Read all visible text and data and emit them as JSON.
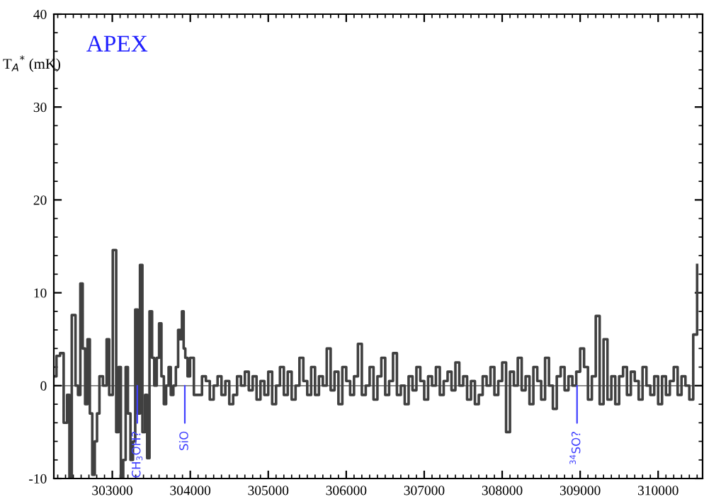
{
  "chart_data": {
    "type": "step",
    "ylabel": "T$_{A}$$^{*}$ (mK)",
    "annotations": [
      "APEX",
      {
        "text": "CH$_{3}$OH?",
        "x": 303320,
        "y": 0
      },
      {
        "text": "SiO",
        "x": 303930,
        "y": 0
      },
      {
        "text": "$^{34}$SO?",
        "x": 308960,
        "y": 0
      }
    ],
    "series": [
      {
        "color": "#404040",
        "x": [
          302250,
          302284,
          302330,
          302376,
          302420,
          302450,
          302480,
          302528,
          302560,
          302590,
          302620,
          302651,
          302682,
          302712,
          302743,
          302775,
          302804,
          302835,
          302880,
          302927,
          302960,
          303006,
          303050,
          303080,
          303110,
          303140,
          303171,
          303200,
          303233,
          303265,
          303294,
          303325,
          303355,
          303386,
          303420,
          303447,
          303477,
          303510,
          303538,
          303570,
          303600,
          303630,
          303661,
          303690,
          303722,
          303750,
          303783,
          303815,
          303844,
          303870,
          303893,
          303915,
          303936,
          303965,
          303997,
          304046,
          304100,
          304150,
          304200,
          304250,
          304300,
          304350,
          304400,
          304450,
          304500,
          304550,
          304600,
          304650,
          304700,
          304750,
          304800,
          304850,
          304900,
          304950,
          305000,
          305050,
          305100,
          305150,
          305200,
          305250,
          305300,
          305350,
          305400,
          305450,
          305500,
          305550,
          305600,
          305650,
          305700,
          305750,
          305800,
          305850,
          305900,
          305950,
          306000,
          306050,
          306100,
          306150,
          306200,
          306250,
          306300,
          306350,
          306400,
          306450,
          306500,
          306550,
          306600,
          306650,
          306700,
          306750,
          306800,
          306850,
          306900,
          306950,
          307000,
          307050,
          307100,
          307150,
          307200,
          307250,
          307300,
          307350,
          307400,
          307450,
          307500,
          307550,
          307600,
          307650,
          307700,
          307750,
          307800,
          307850,
          307900,
          307950,
          308000,
          308050,
          308100,
          308150,
          308200,
          308250,
          308300,
          308350,
          308400,
          308450,
          308500,
          308550,
          308600,
          308650,
          308700,
          308750,
          308800,
          308850,
          308900,
          308950,
          309000,
          309050,
          309100,
          309150,
          309200,
          309250,
          309300,
          309350,
          309400,
          309450,
          309500,
          309550,
          309600,
          309650,
          309700,
          309750,
          309800,
          309850,
          309900,
          309950,
          310000,
          310050,
          310100,
          310150,
          310200,
          310250,
          310300,
          310350,
          310400,
          310450,
          310500
        ],
        "values": [
          1,
          3.2,
          3.5,
          -4,
          -1,
          -10,
          7.6,
          0,
          -1,
          11,
          4,
          -2,
          5,
          -3,
          -9.6,
          -6,
          -3,
          1,
          0,
          5,
          -1,
          14.6,
          -5,
          2,
          -10,
          -8,
          2,
          -3,
          -8,
          -6,
          8.2,
          -3,
          13,
          -5,
          -1,
          -7.8,
          8,
          3,
          0,
          3,
          6.7,
          1,
          -2,
          0,
          2,
          -1,
          0,
          2,
          6,
          5,
          8,
          4,
          3,
          1,
          3,
          -1,
          -1,
          1,
          0.5,
          -1.5,
          0,
          1,
          -1,
          0.5,
          -2,
          -1,
          1,
          0,
          1.5,
          -0.5,
          1,
          -1.5,
          0.5,
          -1,
          1.5,
          -2,
          0,
          2,
          -1,
          1.5,
          -1.5,
          0,
          3,
          0.5,
          -1,
          2,
          -1,
          1,
          0,
          4,
          -0.5,
          1.5,
          -2,
          2,
          0.5,
          -1,
          1,
          4.5,
          -1,
          0,
          2,
          -1.5,
          1,
          3,
          -1,
          0.5,
          3.5,
          -1,
          0,
          -2,
          1,
          -0.5,
          2,
          0.5,
          -1.5,
          1,
          0,
          2,
          -1,
          0.5,
          1.5,
          -0.5,
          2.5,
          0,
          1,
          -1.5,
          0.5,
          -2,
          -1,
          1,
          0,
          2,
          -1,
          0.5,
          2.5,
          -5,
          1.5,
          0,
          3,
          -0.5,
          1,
          -2,
          2,
          0.5,
          -1.5,
          3,
          0,
          -2.5,
          1,
          2,
          -0.5,
          1,
          0,
          1.5,
          4,
          2,
          -1.5,
          1,
          7.5,
          -2,
          5,
          -1.5,
          1,
          -2,
          1,
          2,
          -1,
          1.5,
          0.5,
          -1.5,
          2,
          0,
          -1,
          1,
          -2,
          1,
          -1,
          0.5,
          2,
          -1,
          1,
          0,
          -1.5,
          5.5,
          13
        ]
      }
    ],
    "ref_lines": [
      {
        "axis": "y",
        "value": 0,
        "color": "#808080"
      }
    ],
    "xlim": [
      302250,
      310570
    ],
    "ylim": [
      -10,
      40
    ],
    "xticks": [
      303000,
      304000,
      305000,
      306000,
      307000,
      308000,
      309000,
      310000
    ],
    "yticks": [
      -10,
      0,
      10,
      20,
      30,
      40
    ],
    "grid": false,
    "legend": false
  }
}
